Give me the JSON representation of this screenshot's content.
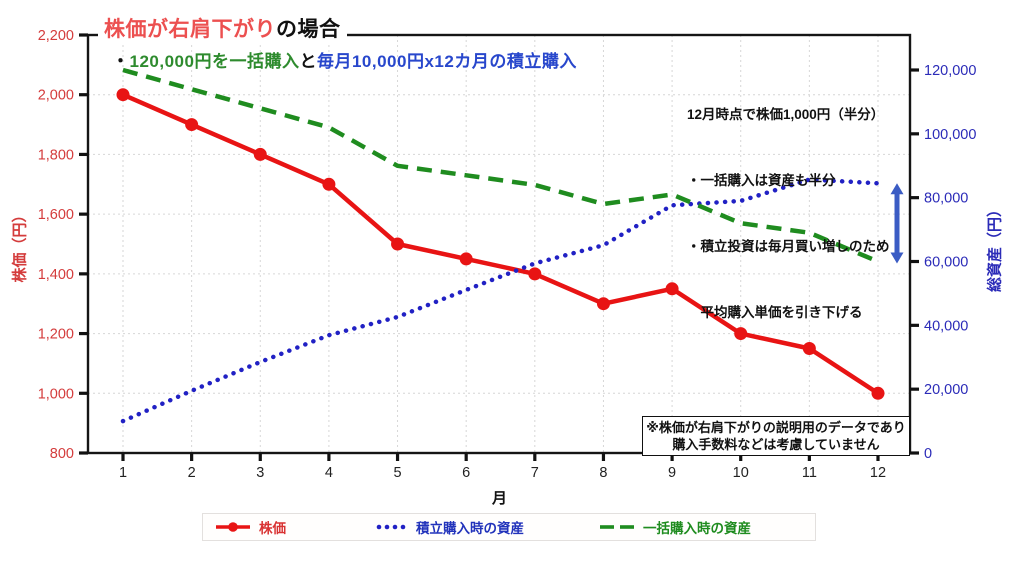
{
  "title": {
    "red_text": "株価が右肩下がり",
    "suffix": "の場合"
  },
  "subtitle": {
    "bullet": "・",
    "green_text": "120,000円を一括購入",
    "connector": "と",
    "blue_text": "毎月10,000円x12カ月の積立購入",
    "green_color": "#2e8b2e",
    "blue_color": "#2847cc"
  },
  "annotation": {
    "lines": [
      "12月時点で株価1,000円（半分）",
      "・一括購入は資産も半分",
      "・積立投資は毎月買い増しのため",
      "　平均購入単価を引き下げる"
    ]
  },
  "note": {
    "lines": [
      "※株価が右肩下がりの説明用のデータであり",
      "購入手数料などは考慮していません"
    ]
  },
  "legend": {
    "items": [
      {
        "label": "株価",
        "color": "#d93333",
        "style": "line-marker"
      },
      {
        "label": "積立購入時の資産",
        "color": "#2233bb",
        "style": "dotted"
      },
      {
        "label": "一括購入時の資産",
        "color": "#1f8c1f",
        "style": "dashed"
      }
    ]
  },
  "chart_data": {
    "type": "line",
    "x": [
      1,
      2,
      3,
      4,
      5,
      6,
      7,
      8,
      9,
      10,
      11,
      12
    ],
    "xlabel": "月",
    "title_red": "株価が右肩下がり",
    "title_black": "の場合",
    "grid": true,
    "left_axis": {
      "label": "株価（円）",
      "color": "#d43c3c",
      "min": 800,
      "max": 2200,
      "ticks": [
        800,
        1000,
        1200,
        1400,
        1600,
        1800,
        2000,
        2200
      ]
    },
    "right_axis": {
      "label": "総資産（円）",
      "color": "#2b2bb8",
      "min": 0,
      "max": 120000,
      "ticks": [
        0,
        20000,
        40000,
        60000,
        80000,
        100000,
        120000
      ]
    },
    "series": [
      {
        "name": "株価",
        "axis": "left",
        "color": "#e81414",
        "style": "solid-marker",
        "values": [
          2000,
          1900,
          1800,
          1700,
          1500,
          1450,
          1400,
          1300,
          1350,
          1200,
          1150,
          1000
        ]
      },
      {
        "name": "積立購入時の資産",
        "axis": "right",
        "color": "#2121c4",
        "style": "dotted",
        "values": [
          10000,
          19500,
          28500,
          36900,
          42600,
          51100,
          59400,
          65100,
          77600,
          79000,
          85700,
          84500
        ]
      },
      {
        "name": "一括購入時の資産",
        "axis": "right",
        "color": "#1f8c1f",
        "style": "dashed",
        "values": [
          120000,
          114000,
          108000,
          102000,
          90000,
          87000,
          84000,
          78000,
          81000,
          72000,
          69000,
          60000
        ]
      }
    ],
    "arrow": {
      "axis": "right",
      "from": 84500,
      "to": 60000,
      "color": "#3b5cc4"
    }
  }
}
